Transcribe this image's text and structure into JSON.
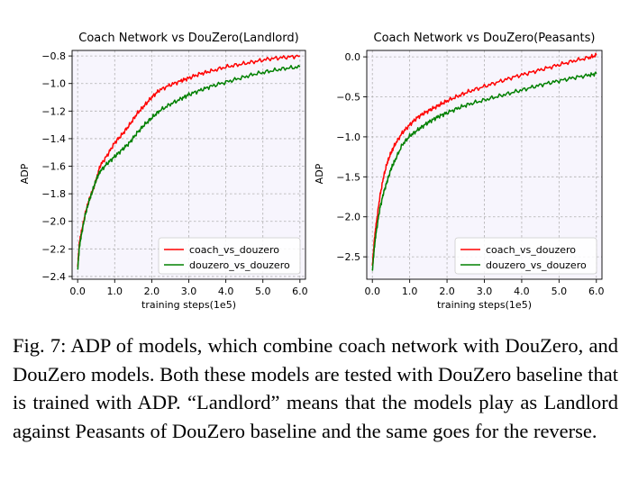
{
  "chart_data": [
    {
      "type": "line",
      "title": "Coach Network vs DouZero(Landlord)",
      "xlabel": "training steps(1e5)",
      "ylabel": "ADP",
      "xlim": [
        -0.15,
        6.15
      ],
      "ylim": [
        -2.42,
        -0.76
      ],
      "xticks": [
        0.0,
        1.0,
        2.0,
        3.0,
        4.0,
        5.0,
        6.0
      ],
      "xtick_labels": [
        "0.0",
        "1.0",
        "2.0",
        "3.0",
        "4.0",
        "5.0",
        "6.0"
      ],
      "yticks": [
        -2.4,
        -2.2,
        -2.0,
        -1.8,
        -1.6,
        -1.4,
        -1.2,
        -1.0,
        -0.8
      ],
      "ytick_labels": [
        "−2.4",
        "−2.2",
        "−2.0",
        "−1.8",
        "−1.6",
        "−1.4",
        "−1.2",
        "−1.0",
        "−0.8"
      ],
      "grid": true,
      "legend_position": "lower-right",
      "series": [
        {
          "name": "coach_vs_douzero",
          "color": "#ff0000",
          "x": [
            0.0,
            0.05,
            0.1,
            0.2,
            0.3,
            0.4,
            0.5,
            0.6,
            0.8,
            1.0,
            1.2,
            1.4,
            1.6,
            1.8,
            2.0,
            2.2,
            2.5,
            2.8,
            3.0,
            3.3,
            3.6,
            4.0,
            4.4,
            4.8,
            5.2,
            5.6,
            6.0
          ],
          "y": [
            -2.33,
            -2.15,
            -2.08,
            -1.95,
            -1.85,
            -1.78,
            -1.7,
            -1.6,
            -1.52,
            -1.43,
            -1.37,
            -1.3,
            -1.22,
            -1.16,
            -1.1,
            -1.05,
            -1.01,
            -0.98,
            -0.96,
            -0.93,
            -0.91,
            -0.88,
            -0.86,
            -0.84,
            -0.82,
            -0.81,
            -0.8
          ]
        },
        {
          "name": "douzero_vs_douzero",
          "color": "#008000",
          "x": [
            0.0,
            0.05,
            0.1,
            0.2,
            0.3,
            0.4,
            0.5,
            0.6,
            0.8,
            1.0,
            1.2,
            1.4,
            1.6,
            1.8,
            2.0,
            2.2,
            2.5,
            2.8,
            3.0,
            3.3,
            3.6,
            4.0,
            4.4,
            4.8,
            5.2,
            5.6,
            6.0
          ],
          "y": [
            -2.35,
            -2.18,
            -2.1,
            -1.96,
            -1.86,
            -1.78,
            -1.7,
            -1.64,
            -1.58,
            -1.53,
            -1.48,
            -1.43,
            -1.36,
            -1.3,
            -1.25,
            -1.2,
            -1.15,
            -1.11,
            -1.08,
            -1.05,
            -1.02,
            -0.99,
            -0.96,
            -0.93,
            -0.91,
            -0.89,
            -0.88
          ]
        }
      ]
    },
    {
      "type": "line",
      "title": "Coach Network vs DouZero(Peasants)",
      "xlabel": "training steps(1e5)",
      "ylabel": "ADP",
      "xlim": [
        -0.15,
        6.15
      ],
      "ylim": [
        -2.78,
        0.08
      ],
      "xticks": [
        0.0,
        1.0,
        2.0,
        3.0,
        4.0,
        5.0,
        6.0
      ],
      "xtick_labels": [
        "0.0",
        "1.0",
        "2.0",
        "3.0",
        "4.0",
        "5.0",
        "6.0"
      ],
      "yticks": [
        -2.5,
        -2.0,
        -1.5,
        -1.0,
        -0.5,
        0.0
      ],
      "ytick_labels": [
        "−2.5",
        "−2.0",
        "−1.5",
        "−1.0",
        "−0.5",
        "0.0"
      ],
      "grid": true,
      "legend_position": "lower-right",
      "series": [
        {
          "name": "coach_vs_douzero",
          "color": "#ff0000",
          "x": [
            0.0,
            0.05,
            0.1,
            0.2,
            0.3,
            0.4,
            0.5,
            0.6,
            0.8,
            1.0,
            1.2,
            1.4,
            1.6,
            1.8,
            2.0,
            2.3,
            2.6,
            3.0,
            3.4,
            3.8,
            4.2,
            4.6,
            5.0,
            5.4,
            5.8,
            6.0
          ],
          "y": [
            -2.62,
            -2.3,
            -2.1,
            -1.75,
            -1.5,
            -1.32,
            -1.2,
            -1.1,
            -0.95,
            -0.85,
            -0.76,
            -0.7,
            -0.65,
            -0.6,
            -0.55,
            -0.49,
            -0.43,
            -0.37,
            -0.31,
            -0.25,
            -0.2,
            -0.15,
            -0.1,
            -0.05,
            -0.01,
            0.02
          ]
        },
        {
          "name": "douzero_vs_douzero",
          "color": "#008000",
          "x": [
            0.0,
            0.05,
            0.1,
            0.2,
            0.3,
            0.4,
            0.5,
            0.6,
            0.8,
            1.0,
            1.2,
            1.4,
            1.6,
            1.8,
            2.0,
            2.3,
            2.6,
            3.0,
            3.4,
            3.8,
            4.2,
            4.6,
            5.0,
            5.4,
            5.8,
            6.0
          ],
          "y": [
            -2.68,
            -2.4,
            -2.2,
            -1.9,
            -1.7,
            -1.55,
            -1.4,
            -1.3,
            -1.1,
            -0.99,
            -0.92,
            -0.85,
            -0.79,
            -0.74,
            -0.7,
            -0.64,
            -0.59,
            -0.54,
            -0.49,
            -0.44,
            -0.39,
            -0.34,
            -0.3,
            -0.26,
            -0.23,
            -0.21
          ]
        }
      ]
    }
  ],
  "caption": "Fig. 7: ADP of models, which combine coach network with DouZero, and DouZero models. Both these models are tested with DouZero baseline that is trained with ADP. “Landlord” means that the models play as Landlord against Peasants of DouZero baseline and the same goes for the reverse."
}
